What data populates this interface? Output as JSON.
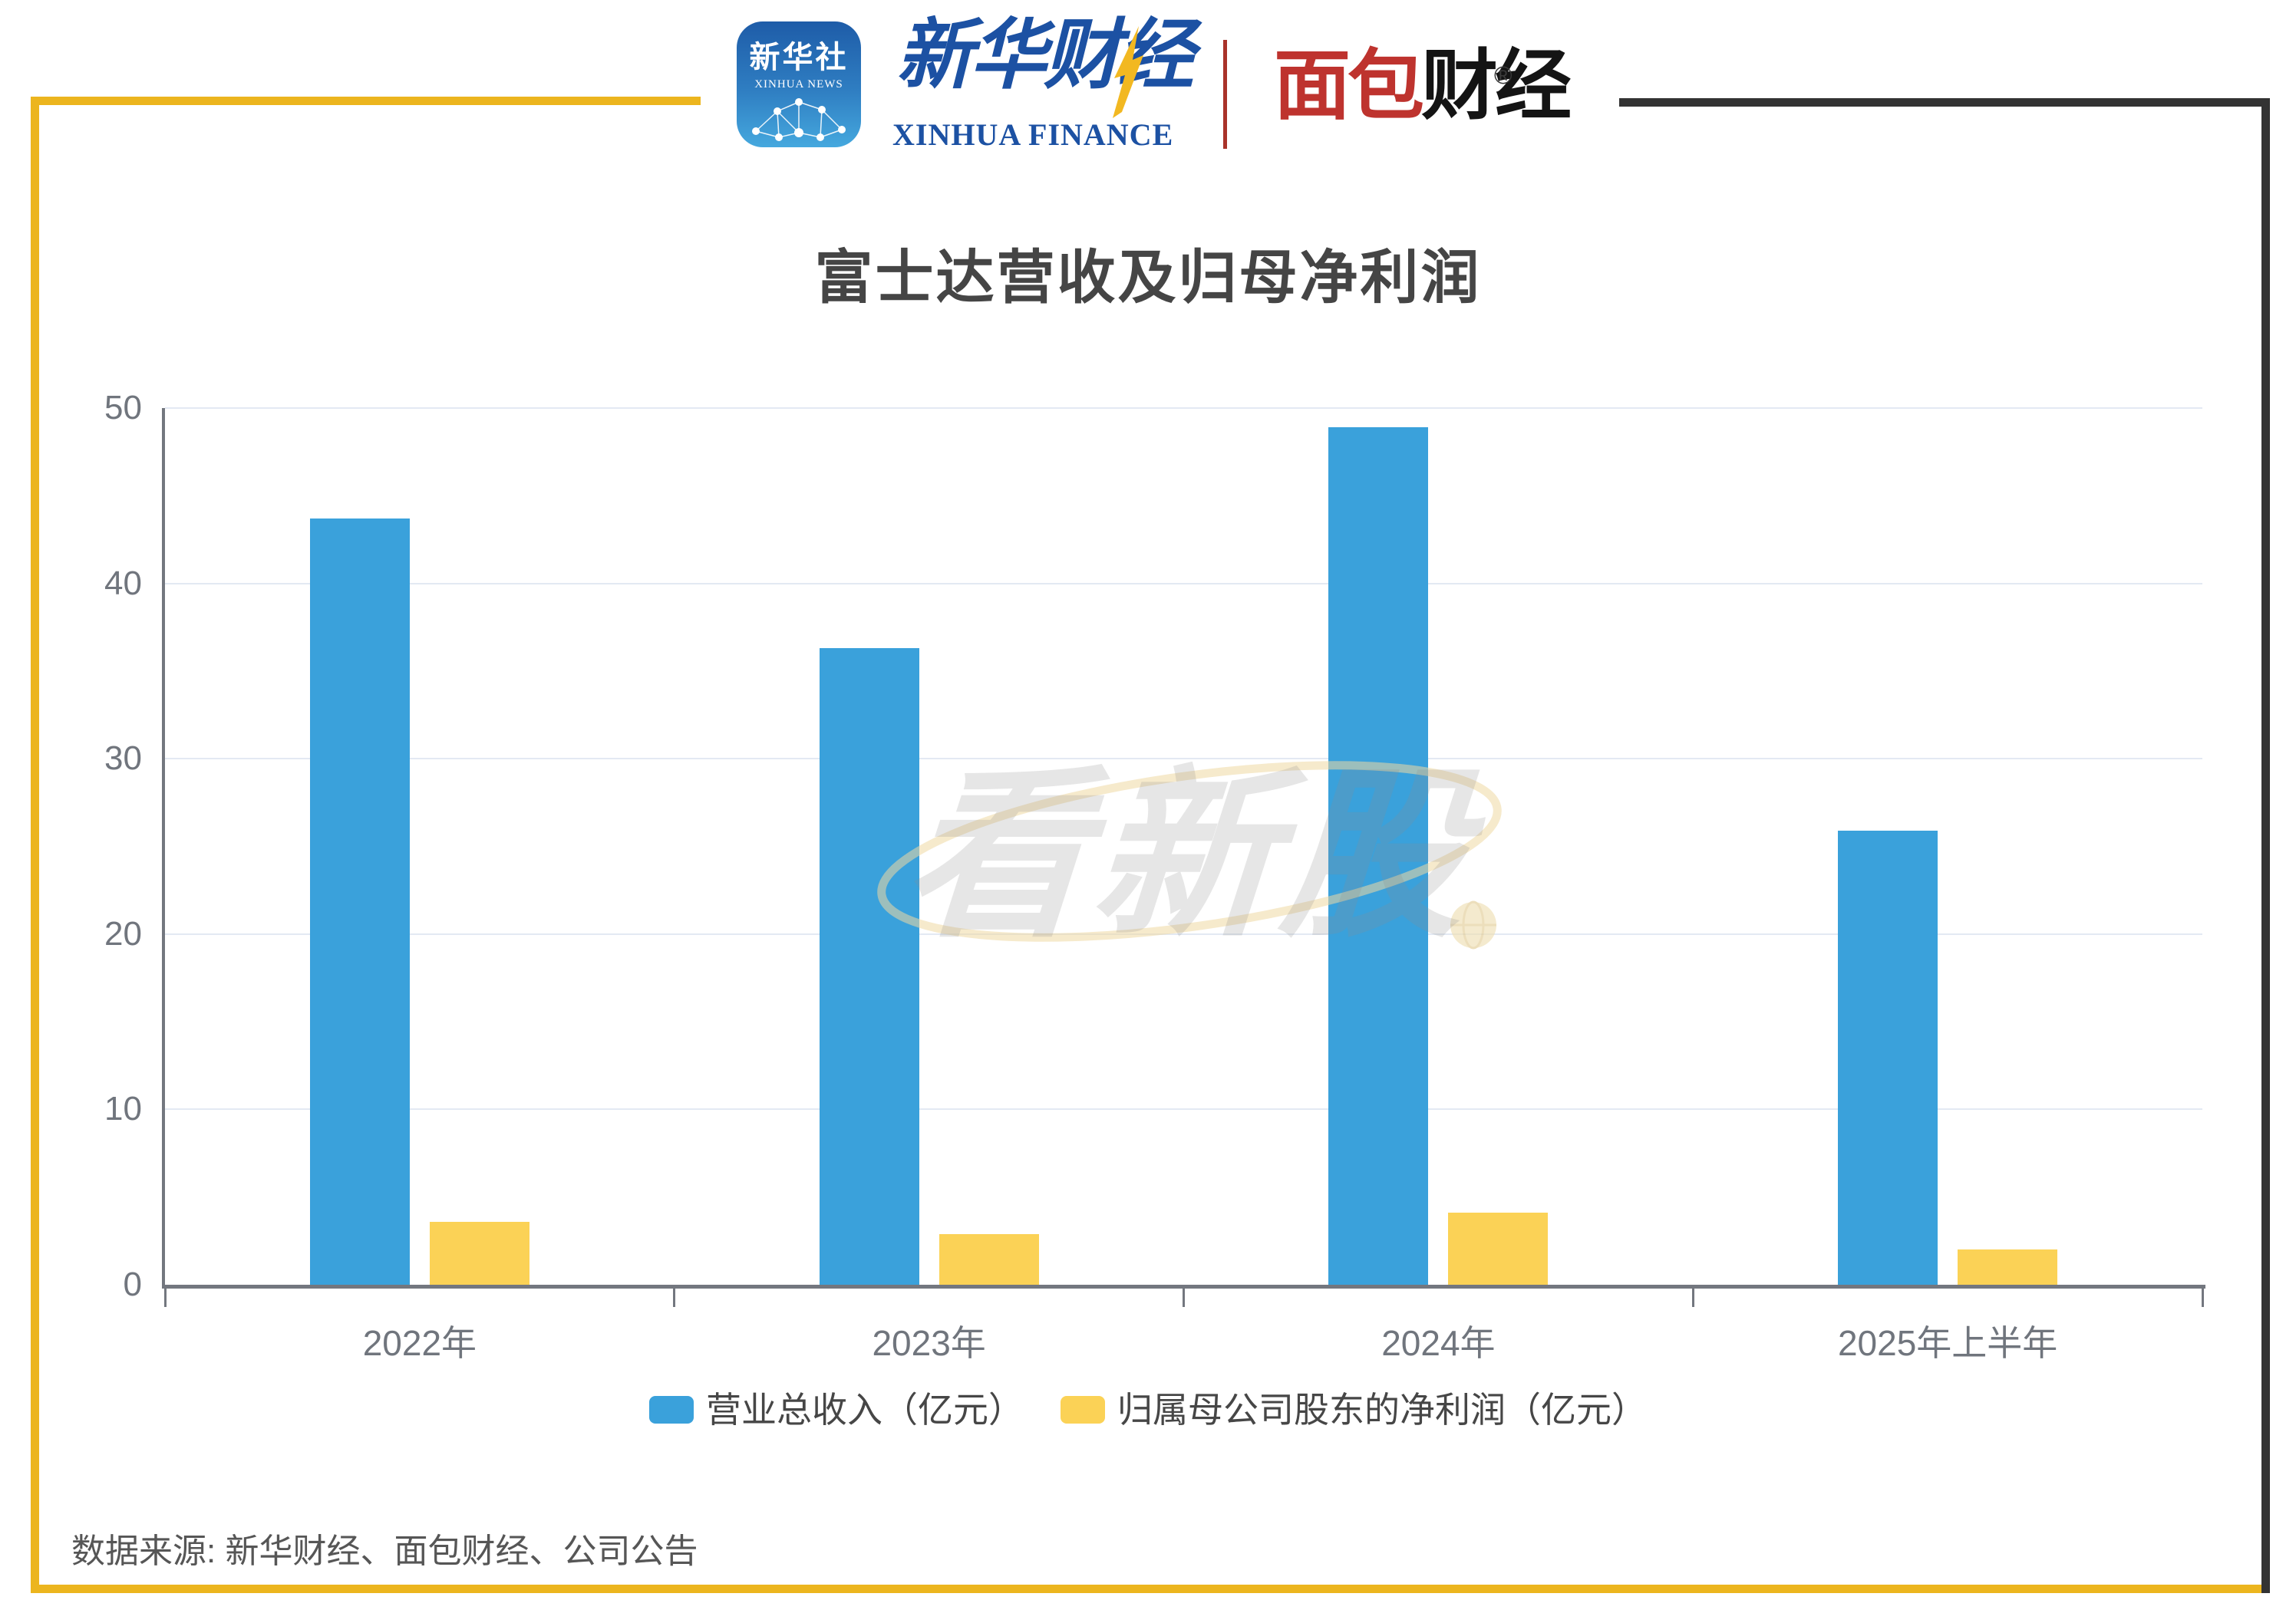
{
  "header": {
    "xinhua_news_icon": {
      "cn": "新华社",
      "en": "XINHUA NEWS"
    },
    "xinhua_finance": {
      "cn": "新华财经",
      "en": "XINHUA FINANCE"
    },
    "mianbao_caijing": {
      "cn_red": "面包",
      "cn_black": "财经",
      "reg_mark": "®"
    },
    "accent_yellow": "#ECB51E",
    "accent_dark": "#333333"
  },
  "chart_data": {
    "type": "bar",
    "title": "富士达营收及归母净利润",
    "categories": [
      "2022年",
      "2023年",
      "2024年",
      "2025年上半年"
    ],
    "series": [
      {
        "name": "营业总收入（亿元）",
        "color": "#3AA1DB",
        "values": [
          43.7,
          36.3,
          48.9,
          25.9
        ]
      },
      {
        "name": "归属母公司股东的净利润（亿元）",
        "color": "#FBD256",
        "values": [
          3.6,
          2.9,
          4.1,
          2.0
        ]
      }
    ],
    "ylim": [
      0,
      50
    ],
    "yticks": [
      0,
      10,
      20,
      30,
      40,
      50
    ],
    "grid": true,
    "legend_position": "bottom",
    "gridline_color": "#E3E9F3",
    "axis_color": "#73777F",
    "label_color": "#70757D"
  },
  "watermark": {
    "text": "看新股"
  },
  "source": {
    "text": "数据来源: 新华财经、面包财经、公司公告"
  }
}
